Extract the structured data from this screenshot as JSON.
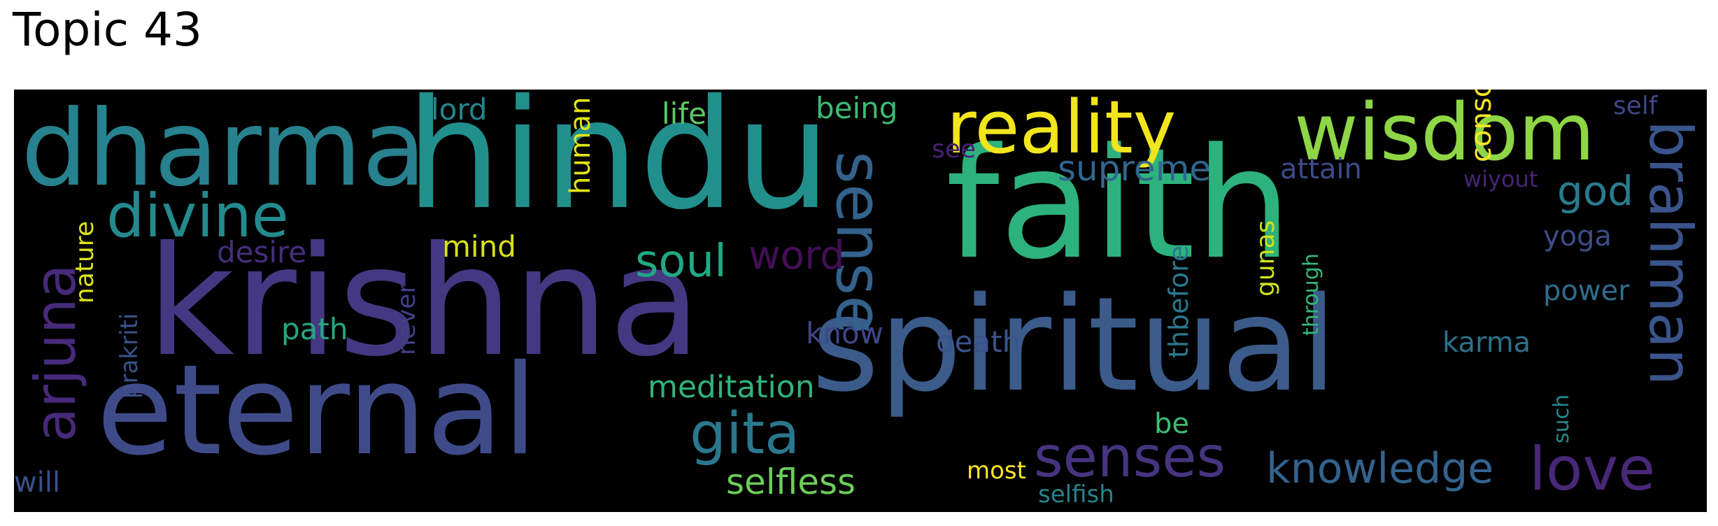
{
  "title": "Topic 43",
  "wordcloud": {
    "background": "#000000",
    "words": [
      {
        "text": "faith",
        "color": "#2db27d"
      },
      {
        "text": "spiritual",
        "color": "#3b5b8b"
      },
      {
        "text": "krishna",
        "color": "#453882"
      },
      {
        "text": "hindu",
        "color": "#21908d"
      },
      {
        "text": "eternal",
        "color": "#3f4b89"
      },
      {
        "text": "dharma",
        "color": "#27818e"
      },
      {
        "text": "wisdom",
        "color": "#8ed645"
      },
      {
        "text": "reality",
        "color": "#f1e51d"
      },
      {
        "text": "divine",
        "color": "#238a8d"
      },
      {
        "text": "sense",
        "color": "#33638d"
      },
      {
        "text": "brahman",
        "color": "#3a548c"
      },
      {
        "text": "senses",
        "color": "#463480"
      },
      {
        "text": "love",
        "color": "#482878"
      },
      {
        "text": "arjuna",
        "color": "#472a7a"
      },
      {
        "text": "gita",
        "color": "#2a788e"
      },
      {
        "text": "knowledge",
        "color": "#33638d"
      },
      {
        "text": "soul",
        "color": "#22a884"
      },
      {
        "text": "selfless",
        "color": "#6ccd5a"
      },
      {
        "text": "word",
        "color": "#440f57"
      },
      {
        "text": "supreme",
        "color": "#31668e"
      },
      {
        "text": "god",
        "color": "#297b8e"
      },
      {
        "text": "meditation",
        "color": "#2fb47c"
      },
      {
        "text": "consciousness",
        "color": "#fde725"
      },
      {
        "text": "lord",
        "color": "#25858e"
      },
      {
        "text": "life",
        "color": "#5ec962"
      },
      {
        "text": "being",
        "color": "#3bbb75"
      },
      {
        "text": "human",
        "color": "#e2e418"
      },
      {
        "text": "mind",
        "color": "#d8e219"
      },
      {
        "text": "desire",
        "color": "#472e7c"
      },
      {
        "text": "path",
        "color": "#22a884"
      },
      {
        "text": "death",
        "color": "#3b528b"
      },
      {
        "text": "know",
        "color": "#404688"
      },
      {
        "text": "karma",
        "color": "#2c718e"
      },
      {
        "text": "attain",
        "color": "#3e4a89"
      },
      {
        "text": "yoga",
        "color": "#3e4c8a"
      },
      {
        "text": "power",
        "color": "#2f6c8e"
      },
      {
        "text": "thbefore",
        "color": "#2a788e"
      },
      {
        "text": "gunas",
        "color": "#d0e11c"
      },
      {
        "text": "nature",
        "color": "#dde318"
      },
      {
        "text": "prakriti",
        "color": "#3a538b"
      },
      {
        "text": "never",
        "color": "#433e85"
      },
      {
        "text": "see",
        "color": "#482173"
      },
      {
        "text": "self",
        "color": "#3f4788"
      },
      {
        "text": "wiyout",
        "color": "#482475"
      },
      {
        "text": "through",
        "color": "#35b779"
      },
      {
        "text": "be",
        "color": "#3dbc74"
      },
      {
        "text": "such",
        "color": "#23898e"
      },
      {
        "text": "most",
        "color": "#fde725"
      },
      {
        "text": "selfish",
        "color": "#25848e"
      },
      {
        "text": "will",
        "color": "#3b518b"
      }
    ]
  }
}
